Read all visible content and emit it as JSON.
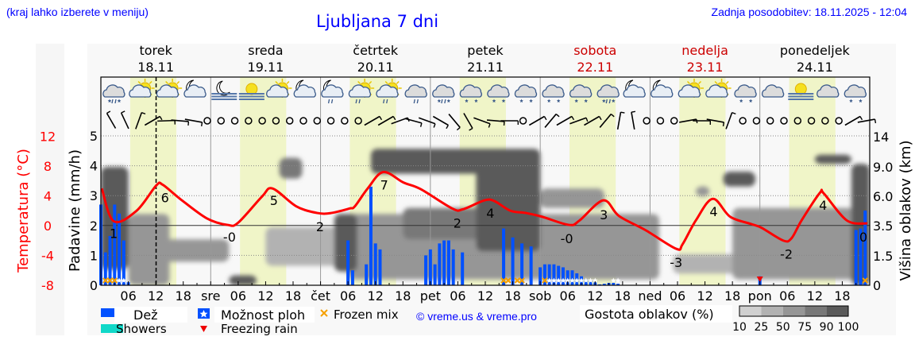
{
  "header": {
    "hint": "(kraj lahko izberete v meniju)",
    "title": "Ljubljana 7 dni",
    "updated": "Zadnja posodobitev: 18.11.2025 - 12:04"
  },
  "colors": {
    "temperature": "#ff0000",
    "rain": "#0050ff",
    "showers": "#10d8c8",
    "freezing_rain": "#ee0000",
    "frozen_mix": "#f5a000",
    "daylight": "#f0f5c8",
    "weekend": "#cc0000",
    "cloud_scale": [
      "#d0d0d0",
      "#b2b2b2",
      "#969696",
      "#787878",
      "#5a5a5a"
    ]
  },
  "days": [
    {
      "name": "torek",
      "date": "18.11",
      "weekend": false,
      "abbr": ""
    },
    {
      "name": "sreda",
      "date": "19.11",
      "weekend": false,
      "abbr": "sre"
    },
    {
      "name": "četrtek",
      "date": "20.11",
      "weekend": false,
      "abbr": "čet"
    },
    {
      "name": "petek",
      "date": "21.11",
      "weekend": false,
      "abbr": "pet"
    },
    {
      "name": "sobota",
      "date": "22.11",
      "weekend": true,
      "abbr": "sob"
    },
    {
      "name": "nedelja",
      "date": "23.11",
      "weekend": true,
      "abbr": "ned"
    },
    {
      "name": "ponedeljek",
      "date": "24.11",
      "weekend": false,
      "abbr": "pon"
    }
  ],
  "hour_labels": [
    "06",
    "12",
    "18"
  ],
  "now": "18.11 12:04",
  "weather_icons": [
    "cloud-sleet",
    "sun-cloud",
    "sun-cloud",
    "moon-cloud",
    "moon-fog",
    "sun-fog",
    "sun-cloud",
    "moon-cloud",
    "moon-cloud-rain",
    "sun-cloud-rain",
    "sun-cloud-rain",
    "cloud-rain",
    "cloud-sleet",
    "cloud-snow",
    "cloud-snow",
    "cloud-snow",
    "cloud-snow",
    "cloud-snow",
    "cloud-sleet",
    "moon-cloud",
    "moon-cloud",
    "sun-cloud",
    "sun-cloud",
    "cloud-snow",
    "cloud",
    "sun-fog",
    "cloud",
    "cloud-snow"
  ],
  "wind": [
    330,
    335,
    20,
    60,
    88,
    95,
    100,
    "calm",
    "calm",
    "calm",
    "calm",
    "calm",
    "calm",
    "calm",
    "calm",
    "calm",
    "calm",
    "calm",
    "calm",
    60,
    60,
    70,
    105,
    110,
    120,
    140,
    150,
    110,
    95,
    90,
    "calm",
    60,
    40,
    60,
    70,
    60,
    40,
    10,
    350,
    "calm",
    "calm",
    "calm",
    80,
    90,
    100,
    20,
    "calm",
    "calm",
    "calm",
    "calm",
    "calm",
    "calm",
    "calm",
    "calm",
    60,
    80
  ],
  "chart_data": {
    "type": "line",
    "axes": {
      "temperature": {
        "label": "Temperatura (°C)",
        "ticks": [
          12,
          8,
          4,
          0,
          -4,
          -8
        ],
        "range": [
          -8,
          12
        ]
      },
      "precipitation": {
        "label": "Padavine (mm/h)",
        "ticks": [
          0,
          1,
          2,
          3,
          4,
          5
        ],
        "range": [
          0,
          5
        ]
      },
      "cloud_height": {
        "label": "Višina oblakov (km)",
        "ticks": [
          0,
          1.5,
          3.5,
          6.0,
          9.0,
          14
        ],
        "tick_labels": [
          "0",
          "1.5",
          "3.5",
          "6.0",
          "9.0",
          "14"
        ]
      }
    },
    "grid": true,
    "temperature": [
      [
        "18.11 00:12",
        5.0
      ],
      [
        "18.11 02:48",
        0.6
      ],
      [
        "18.11 07:48",
        2.0
      ],
      [
        "18.11 12:06",
        5.4
      ],
      [
        "18.11 13:30",
        5.5
      ],
      [
        "18.11 17:18",
        3.6
      ],
      [
        "18.11 23:06",
        1.0
      ],
      [
        "19.11 03:42",
        0.1
      ],
      [
        "19.11 06:00",
        0.4
      ],
      [
        "19.11 11:12",
        3.9
      ],
      [
        "19.11 13:30",
        5.0
      ],
      [
        "19.11 18:42",
        2.6
      ],
      [
        "19.11 23:18",
        1.7
      ],
      [
        "20.11 02:18",
        1.7
      ],
      [
        "20.11 06:18",
        2.3
      ],
      [
        "20.11 07:30",
        2.6
      ],
      [
        "20.11 10:18",
        5.0
      ],
      [
        "20.11 13:42",
        7.2
      ],
      [
        "20.11 18:06",
        5.8
      ],
      [
        "20.11 21:54",
        4.9
      ],
      [
        "21.11 04:48",
        2.3
      ],
      [
        "21.11 07:06",
        2.2
      ],
      [
        "21.11 11:48",
        3.4
      ],
      [
        "21.11 14:00",
        3.3
      ],
      [
        "21.11 17:30",
        2.0
      ],
      [
        "21.11 20:54",
        1.7
      ],
      [
        "22.11 00:24",
        1.2
      ],
      [
        "22.11 06:18",
        0.1
      ],
      [
        "22.11 08:36",
        0.7
      ],
      [
        "22.11 13:48",
        3.4
      ],
      [
        "22.11 17:12",
        1.3
      ],
      [
        "22.11 23:00",
        -0.6
      ],
      [
        "23.11 05:42",
        -3.1
      ],
      [
        "23.11 07:06",
        -2.5
      ],
      [
        "23.11 10:00",
        0.7
      ],
      [
        "23.11 13:42",
        3.6
      ],
      [
        "23.11 17:30",
        1.2
      ],
      [
        "23.11 22:12",
        0.2
      ],
      [
        "24.11 00:24",
        -0.3
      ],
      [
        "24.11 05:06",
        -2.0
      ],
      [
        "24.11 06:54",
        -1.7
      ],
      [
        "24.11 09:06",
        0.7
      ],
      [
        "24.11 13:06",
        4.4
      ],
      [
        "24.11 14:00",
        4.3
      ],
      [
        "24.11 19:00",
        0.7
      ],
      [
        "24.11 23:30",
        0.3
      ]
    ],
    "temperature_labels": [
      {
        "text": "1",
        "time": "18.11 02:48",
        "y": -1.0
      },
      {
        "text": "6",
        "time": "18.11 14:00",
        "y": 3.8
      },
      {
        "text": "-0",
        "time": "19.11 04:06",
        "y": -1.5
      },
      {
        "text": "5",
        "time": "19.11 13:48",
        "y": 3.4
      },
      {
        "text": "2",
        "time": "19.11 23:54",
        "y": -0.1
      },
      {
        "text": "7",
        "time": "20.11 13:54",
        "y": 5.5
      },
      {
        "text": "2",
        "time": "21.11 05:54",
        "y": 0.4
      },
      {
        "text": "4",
        "time": "21.11 13:06",
        "y": 1.7
      },
      {
        "text": "-0",
        "time": "22.11 05:48",
        "y": -1.7
      },
      {
        "text": "3",
        "time": "22.11 13:54",
        "y": 1.5
      },
      {
        "text": "-3",
        "time": "23.11 05:42",
        "y": -4.9
      },
      {
        "text": "4",
        "time": "23.11 13:54",
        "y": 1.9
      },
      {
        "text": "-2",
        "time": "24.11 05:48",
        "y": -3.8
      },
      {
        "text": "4",
        "time": "24.11 13:48",
        "y": 2.8
      },
      {
        "text": "0",
        "time": "24.11 22:36",
        "y": -1.5
      }
    ],
    "precipitation": [
      [
        "18.11 00:00",
        2.7
      ],
      [
        "18.11 01:00",
        1.1
      ],
      [
        "18.11 02:00",
        1.65
      ],
      [
        "18.11 03:00",
        2.7
      ],
      [
        "18.11 04:00",
        2.4
      ],
      [
        "18.11 05:00",
        1.5
      ],
      [
        "18.11 06:00",
        0.1
      ],
      [
        "20.11 06:00",
        1.5
      ],
      [
        "20.11 07:00",
        0.5
      ],
      [
        "20.11 10:00",
        0.7
      ],
      [
        "20.11 11:00",
        3.3
      ],
      [
        "20.11 12:00",
        1.4
      ],
      [
        "20.11 13:00",
        1.2
      ],
      [
        "20.11 23:00",
        1.0
      ],
      [
        "21.11 00:00",
        1.2
      ],
      [
        "21.11 01:00",
        0.7
      ],
      [
        "21.11 02:00",
        1.4
      ],
      [
        "21.11 03:00",
        1.5
      ],
      [
        "21.11 04:00",
        1.5
      ],
      [
        "21.11 05:00",
        1.2
      ],
      [
        "21.11 07:00",
        1.1
      ],
      [
        "21.11 16:00",
        1.9
      ],
      [
        "21.11 18:00",
        1.6
      ],
      [
        "21.11 20:00",
        1.4
      ],
      [
        "21.11 22:00",
        1.3
      ],
      [
        "22.11 00:00",
        0.6
      ],
      [
        "22.11 01:00",
        0.7
      ],
      [
        "22.11 02:00",
        0.7
      ],
      [
        "22.11 03:00",
        0.7
      ],
      [
        "22.11 04:00",
        0.65
      ],
      [
        "22.11 05:00",
        0.6
      ],
      [
        "22.11 06:00",
        0.5
      ],
      [
        "22.11 07:00",
        0.5
      ],
      [
        "22.11 08:00",
        0.4
      ],
      [
        "22.11 09:00",
        0.3
      ],
      [
        "22.11 10:00",
        0.2
      ],
      [
        "22.11 11:00",
        0.15
      ],
      [
        "22.11 12:00",
        0.1
      ],
      [
        "22.11 13:00",
        0.03
      ],
      [
        "22.11 14:00",
        0.05
      ],
      [
        "22.11 15:00",
        0.08
      ],
      [
        "22.11 16:00",
        0.08
      ],
      [
        "22.11 17:00",
        0.05
      ],
      [
        "24.11 00:00",
        0.3
      ],
      [
        "24.11 21:00",
        1.85
      ],
      [
        "24.11 22:00",
        1.9
      ],
      [
        "24.11 23:00",
        2.5
      ]
    ],
    "frozen_mix": [
      "18.11 01:00",
      "18.11 02:00",
      "18.11 03:00",
      "21.11 16:00",
      "21.11 17:00",
      "21.11 19:00",
      "21.11 20:00",
      "22.11 01:00",
      "24.11 23:00"
    ],
    "shower_possibility": [
      "18.11 04:00",
      "18.11 05:00",
      "22.11 02:00",
      "22.11 03:00",
      "22.11 04:00",
      "22.11 05:00",
      "22.11 06:00",
      "22.11 07:00",
      "22.11 08:00",
      "22.11 09:00",
      "22.11 10:00",
      "22.11 11:00",
      "22.11 12:00",
      "22.11 16:00",
      "22.11 17:00"
    ],
    "freezing_rain": [
      "24.11 00:00"
    ],
    "cloud_density": [
      {
        "from": "19.11 12:00",
        "to": "20.11 06:00",
        "km": [
          1.0,
          3.4
        ],
        "pct": 25
      },
      {
        "from": "23.11 05:00",
        "to": "24.11 02:00",
        "km": [
          0.6,
          1.6
        ],
        "pct": 25
      },
      {
        "from": "20.11 06:00",
        "to": "23.11 02:00",
        "km": [
          0.3,
          4.5
        ],
        "pct": 50
      },
      {
        "from": "18.11 06:00",
        "to": "18.11 15:00",
        "km": [
          0.0,
          4.5
        ],
        "pct": 50
      },
      {
        "from": "23.11 18:00",
        "to": "24.11 23:59",
        "km": [
          0.3,
          5.0
        ],
        "pct": 50
      },
      {
        "from": "22.11 00:00",
        "to": "22.11 14:00",
        "km": [
          5.0,
          6.8
        ],
        "pct": 50
      },
      {
        "from": "18.11 12:00",
        "to": "19.11 04:00",
        "km": [
          1.2,
          2.6
        ],
        "pct": 50
      },
      {
        "from": "20.11 18:00",
        "to": "21.11 16:00",
        "km": [
          2.6,
          5.0
        ],
        "pct": 75
      },
      {
        "from": "19.11 15:00",
        "to": "19.11 20:00",
        "km": [
          7.8,
          10.5
        ],
        "pct": 75
      },
      {
        "from": "23.11 10:00",
        "to": "23.11 13:00",
        "km": [
          6.0,
          7.0
        ],
        "pct": 50
      },
      {
        "from": "18.11 00:00",
        "to": "18.11 06:00",
        "km": [
          0.8,
          9.0
        ],
        "pct": 90
      },
      {
        "from": "19.11 04:00",
        "to": "19.11 10:00",
        "km": [
          0.0,
          0.5
        ],
        "pct": 90
      },
      {
        "from": "20.11 03:00",
        "to": "20.11 08:00",
        "km": [
          0.7,
          4.5
        ],
        "pct": 90
      },
      {
        "from": "20.11 11:00",
        "to": "22.11 00:00",
        "km": [
          8.3,
          12.0
        ],
        "pct": 90
      },
      {
        "from": "21.11 10:00",
        "to": "22.11 00:00",
        "km": [
          1.8,
          10.0
        ],
        "pct": 90
      },
      {
        "from": "23.11 16:00",
        "to": "23.11 23:00",
        "km": [
          7.0,
          8.5
        ],
        "pct": 90
      },
      {
        "from": "24.11 12:00",
        "to": "24.11 20:00",
        "km": [
          9.5,
          11.0
        ],
        "pct": 90
      },
      {
        "from": "24.11 20:00",
        "to": "24.11 23:59",
        "km": [
          0.0,
          9.5
        ],
        "pct": 90
      }
    ]
  },
  "legend": {
    "rain": "Dež",
    "showers": "Showers",
    "possibility": "Možnost ploh",
    "freezing_rain": "Freezing rain",
    "frozen_mix": "Frozen mix",
    "credit": "© vreme.us & vreme.pro",
    "cloud_title": "Gostota oblakov (%)",
    "cloud_levels": [
      "10",
      "25",
      "50",
      "75",
      "90",
      "100"
    ]
  }
}
